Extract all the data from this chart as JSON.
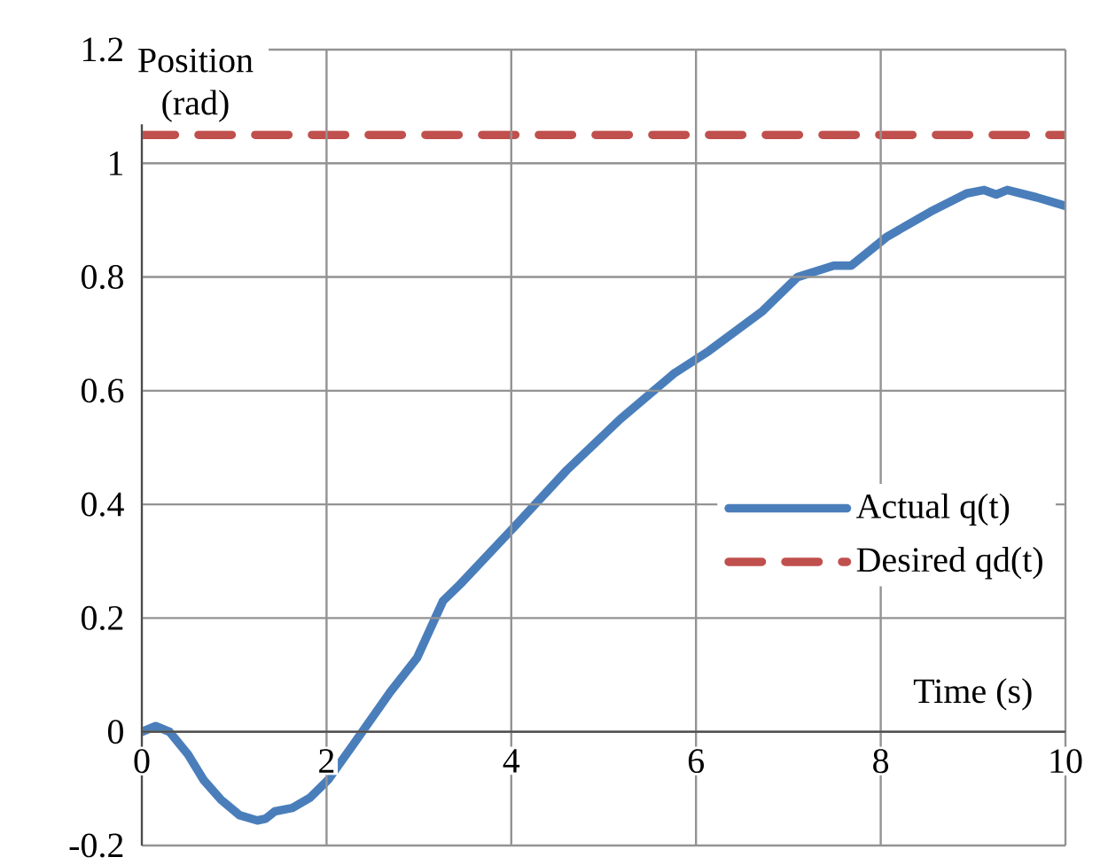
{
  "chart_data": {
    "type": "line",
    "xlabel": "Time (s)",
    "ylabel": "Position (rad)",
    "xlim": [
      0,
      10
    ],
    "ylim": [
      -0.2,
      1.2
    ],
    "xticks": [
      0,
      2,
      4,
      6,
      8,
      10
    ],
    "yticks": [
      -0.2,
      0,
      0.2,
      0.4,
      0.6,
      0.8,
      1,
      1.2
    ],
    "grid": true,
    "legend": "right",
    "marker": "none",
    "series": [
      {
        "name": "Actual q(t)",
        "color": "#4a7ebb",
        "line_style": "solid",
        "x": [
          0,
          0.15,
          0.3,
          0.5,
          0.67,
          0.86,
          1.06,
          1.25,
          1.34,
          1.44,
          1.63,
          1.82,
          2.02,
          2.3,
          2.69,
          2.98,
          3.26,
          3.45,
          4.03,
          4.6,
          5.18,
          5.76,
          6.14,
          6.72,
          7.1,
          7.49,
          7.68,
          8.06,
          8.54,
          8.93,
          9.12,
          9.25,
          9.37,
          9.69,
          10
        ],
        "values": [
          0,
          0.01,
          0,
          -0.04,
          -0.085,
          -0.12,
          -0.147,
          -0.156,
          -0.153,
          -0.14,
          -0.134,
          -0.116,
          -0.084,
          -0.02,
          0.07,
          0.13,
          0.23,
          0.26,
          0.36,
          0.46,
          0.55,
          0.63,
          0.67,
          0.74,
          0.8,
          0.82,
          0.82,
          0.87,
          0.915,
          0.947,
          0.953,
          0.945,
          0.953,
          0.94,
          0.925
        ]
      },
      {
        "name": "Desired qd(t)",
        "color": "#c0504d",
        "line_style": "dashed",
        "x": [
          0,
          10
        ],
        "values": [
          1.05,
          1.05
        ]
      }
    ]
  }
}
